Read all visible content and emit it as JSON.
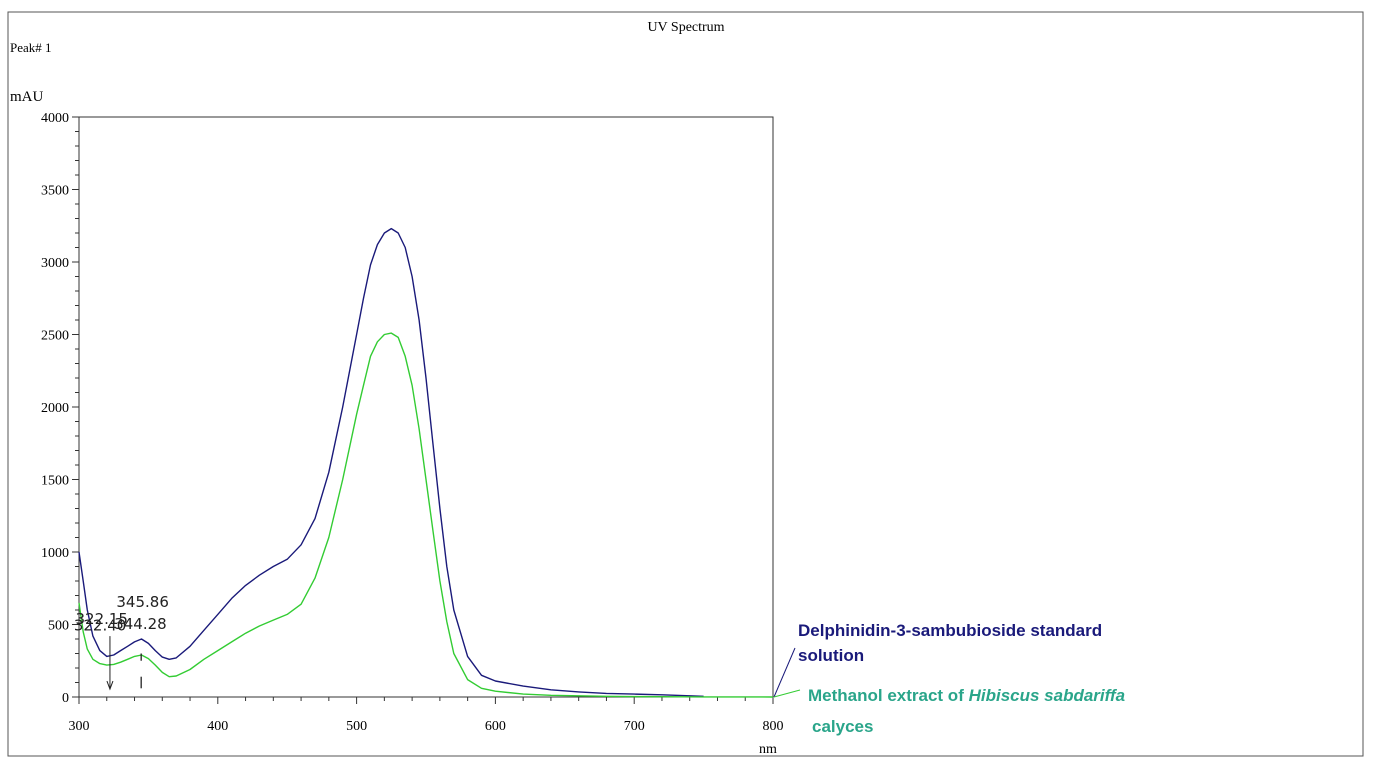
{
  "chart_data": {
    "type": "line",
    "title": "UV Spectrum",
    "subtitle": "Peak# 1",
    "ylabel": "mAU",
    "xlabel": "nm",
    "xlim": [
      300,
      800
    ],
    "ylim": [
      0,
      4000
    ],
    "x_ticks": [
      300,
      400,
      500,
      600,
      700,
      800
    ],
    "y_ticks": [
      0,
      500,
      1000,
      1500,
      2000,
      2500,
      3000,
      3500,
      4000
    ],
    "series": [
      {
        "name": "Delphinidin-3-sambubioside standard solution",
        "color": "#1a1a7a",
        "x": [
          300,
          303,
          306,
          310,
          315,
          320,
          325,
          330,
          335,
          340,
          345,
          350,
          355,
          360,
          365,
          370,
          380,
          390,
          400,
          410,
          420,
          430,
          440,
          450,
          460,
          470,
          480,
          490,
          500,
          505,
          510,
          515,
          520,
          525,
          530,
          535,
          540,
          545,
          550,
          555,
          560,
          565,
          570,
          580,
          590,
          600,
          620,
          640,
          660,
          680,
          700,
          720,
          750
        ],
        "y": [
          1000,
          800,
          600,
          420,
          320,
          280,
          290,
          320,
          350,
          380,
          400,
          370,
          320,
          275,
          260,
          270,
          350,
          460,
          570,
          680,
          770,
          840,
          900,
          950,
          1050,
          1230,
          1550,
          2000,
          2500,
          2750,
          2980,
          3120,
          3200,
          3230,
          3200,
          3100,
          2900,
          2600,
          2200,
          1750,
          1300,
          900,
          600,
          280,
          150,
          110,
          75,
          50,
          35,
          25,
          20,
          15,
          5
        ]
      },
      {
        "name": "Methanol extract of Hibiscus sabdariffa calyces",
        "color": "#33cc33",
        "x": [
          300,
          303,
          306,
          310,
          315,
          320,
          325,
          330,
          335,
          340,
          345,
          350,
          355,
          360,
          365,
          370,
          380,
          390,
          400,
          410,
          420,
          430,
          440,
          450,
          460,
          470,
          480,
          490,
          500,
          505,
          510,
          515,
          520,
          525,
          530,
          535,
          540,
          545,
          550,
          555,
          560,
          565,
          570,
          580,
          590,
          600,
          620,
          640,
          660,
          680,
          700,
          720,
          750,
          800
        ],
        "y": [
          650,
          450,
          330,
          260,
          230,
          220,
          225,
          240,
          260,
          280,
          290,
          265,
          220,
          170,
          140,
          145,
          190,
          260,
          320,
          380,
          440,
          490,
          530,
          570,
          640,
          820,
          1100,
          1500,
          1950,
          2150,
          2350,
          2450,
          2500,
          2510,
          2480,
          2350,
          2150,
          1850,
          1500,
          1150,
          800,
          520,
          300,
          120,
          60,
          40,
          20,
          12,
          8,
          5,
          3,
          2,
          1,
          0
        ]
      }
    ],
    "annotations": [
      {
        "label": "345.86",
        "x": 345.86
      },
      {
        "label": "322.15",
        "x": 322.15
      },
      {
        "label": "322.40",
        "x": 322.4
      },
      {
        "label": "344.28",
        "x": 344.28
      }
    ],
    "legend_labels": [
      {
        "lines": [
          "Delphinidin-3-sambubioside standard",
          "solution"
        ],
        "color": "#1a1a7a"
      },
      {
        "lines": [
          "Methanol extract of ",
          "Hibiscus sabdariffa",
          "calyces"
        ],
        "color": "#2aa58a"
      }
    ]
  }
}
